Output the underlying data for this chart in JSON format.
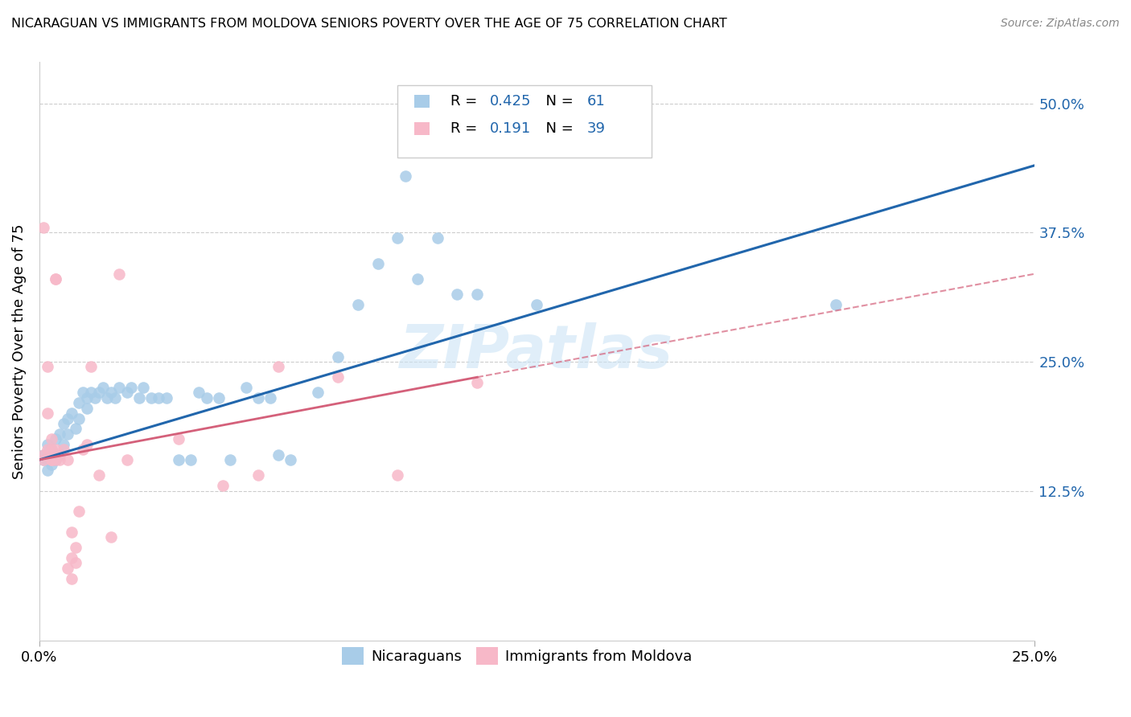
{
  "title": "NICARAGUAN VS IMMIGRANTS FROM MOLDOVA SENIORS POVERTY OVER THE AGE OF 75 CORRELATION CHART",
  "source": "Source: ZipAtlas.com",
  "ylabel_label": "Seniors Poverty Over the Age of 75",
  "legend_blue_label": "Nicaraguans",
  "legend_pink_label": "Immigrants from Moldova",
  "xlim": [
    0.0,
    0.25
  ],
  "ylim": [
    -0.02,
    0.54
  ],
  "blue_color": "#a8cce8",
  "pink_color": "#f7b8c8",
  "line_blue_color": "#2166ac",
  "line_pink_color": "#d4607a",
  "watermark": "ZIPatlas",
  "blue_points": [
    [
      0.001,
      0.155
    ],
    [
      0.001,
      0.16
    ],
    [
      0.002,
      0.145
    ],
    [
      0.002,
      0.155
    ],
    [
      0.002,
      0.17
    ],
    [
      0.003,
      0.15
    ],
    [
      0.003,
      0.165
    ],
    [
      0.004,
      0.155
    ],
    [
      0.004,
      0.175
    ],
    [
      0.005,
      0.16
    ],
    [
      0.005,
      0.18
    ],
    [
      0.006,
      0.19
    ],
    [
      0.006,
      0.17
    ],
    [
      0.007,
      0.195
    ],
    [
      0.007,
      0.18
    ],
    [
      0.008,
      0.2
    ],
    [
      0.009,
      0.185
    ],
    [
      0.01,
      0.21
    ],
    [
      0.01,
      0.195
    ],
    [
      0.011,
      0.22
    ],
    [
      0.012,
      0.205
    ],
    [
      0.012,
      0.215
    ],
    [
      0.013,
      0.22
    ],
    [
      0.014,
      0.215
    ],
    [
      0.015,
      0.22
    ],
    [
      0.016,
      0.225
    ],
    [
      0.017,
      0.215
    ],
    [
      0.018,
      0.22
    ],
    [
      0.019,
      0.215
    ],
    [
      0.02,
      0.225
    ],
    [
      0.022,
      0.22
    ],
    [
      0.023,
      0.225
    ],
    [
      0.025,
      0.215
    ],
    [
      0.026,
      0.225
    ],
    [
      0.028,
      0.215
    ],
    [
      0.03,
      0.215
    ],
    [
      0.032,
      0.215
    ],
    [
      0.035,
      0.155
    ],
    [
      0.038,
      0.155
    ],
    [
      0.04,
      0.22
    ],
    [
      0.042,
      0.215
    ],
    [
      0.045,
      0.215
    ],
    [
      0.048,
      0.155
    ],
    [
      0.052,
      0.225
    ],
    [
      0.055,
      0.215
    ],
    [
      0.058,
      0.215
    ],
    [
      0.06,
      0.16
    ],
    [
      0.063,
      0.155
    ],
    [
      0.07,
      0.22
    ],
    [
      0.075,
      0.255
    ],
    [
      0.08,
      0.305
    ],
    [
      0.085,
      0.345
    ],
    [
      0.09,
      0.37
    ],
    [
      0.092,
      0.43
    ],
    [
      0.095,
      0.33
    ],
    [
      0.1,
      0.37
    ],
    [
      0.105,
      0.315
    ],
    [
      0.11,
      0.315
    ],
    [
      0.125,
      0.305
    ],
    [
      0.2,
      0.305
    ],
    [
      0.1,
      0.465
    ]
  ],
  "pink_points": [
    [
      0.001,
      0.38
    ],
    [
      0.001,
      0.155
    ],
    [
      0.001,
      0.16
    ],
    [
      0.002,
      0.245
    ],
    [
      0.002,
      0.2
    ],
    [
      0.002,
      0.165
    ],
    [
      0.003,
      0.175
    ],
    [
      0.003,
      0.165
    ],
    [
      0.003,
      0.155
    ],
    [
      0.003,
      0.155
    ],
    [
      0.004,
      0.33
    ],
    [
      0.004,
      0.33
    ],
    [
      0.004,
      0.155
    ],
    [
      0.004,
      0.165
    ],
    [
      0.005,
      0.16
    ],
    [
      0.005,
      0.155
    ],
    [
      0.006,
      0.165
    ],
    [
      0.007,
      0.155
    ],
    [
      0.007,
      0.05
    ],
    [
      0.008,
      0.06
    ],
    [
      0.008,
      0.04
    ],
    [
      0.008,
      0.085
    ],
    [
      0.009,
      0.07
    ],
    [
      0.009,
      0.055
    ],
    [
      0.01,
      0.105
    ],
    [
      0.011,
      0.165
    ],
    [
      0.012,
      0.17
    ],
    [
      0.013,
      0.245
    ],
    [
      0.015,
      0.14
    ],
    [
      0.018,
      0.08
    ],
    [
      0.02,
      0.335
    ],
    [
      0.022,
      0.155
    ],
    [
      0.035,
      0.175
    ],
    [
      0.046,
      0.13
    ],
    [
      0.055,
      0.14
    ],
    [
      0.06,
      0.245
    ],
    [
      0.075,
      0.235
    ],
    [
      0.09,
      0.14
    ],
    [
      0.11,
      0.23
    ]
  ],
  "blue_line": {
    "x0": 0.0,
    "y0": 0.155,
    "x1": 0.25,
    "y1": 0.44
  },
  "pink_line_solid": {
    "x0": 0.0,
    "y0": 0.155,
    "x1": 0.11,
    "y1": 0.235
  },
  "pink_line_dashed": {
    "x0": 0.11,
    "y0": 0.235,
    "x1": 0.25,
    "y1": 0.335
  }
}
